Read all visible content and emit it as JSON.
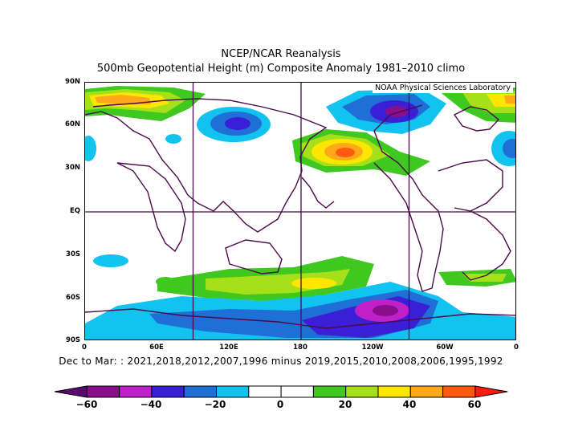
{
  "title": "NCEP/NCAR Reanalysis",
  "subtitle": "500mb Geopotential Height (m) Composite Anomaly 1981–2010 climo",
  "credit": "NOAA Physical Sciences Laboratory",
  "y_ticks": [
    "90N",
    "60N",
    "30N",
    "EQ",
    "30S",
    "60S",
    "90S"
  ],
  "x_ticks": [
    "0",
    "60E",
    "120E",
    "180",
    "120W",
    "60W",
    "0"
  ],
  "composite_text": "Dec to Mar: : 2021,2018,2012,2007,1996 minus 2019,2015,2010,2008,2006,1995,1992",
  "colorbar": {
    "labels": [
      "−60",
      "−40",
      "−20",
      "0",
      "20",
      "40",
      "60"
    ],
    "colors": [
      "#8a0e8c",
      "#c020c8",
      "#3a1fd6",
      "#1f6fd6",
      "#12c3f0",
      "#ffffff",
      "#ffffff",
      "#3fc81f",
      "#a6e019",
      "#ffe600",
      "#ffa81a",
      "#ff5a10"
    ],
    "end_low": "#5a0a6a",
    "end_high": "#ff1a10"
  }
}
